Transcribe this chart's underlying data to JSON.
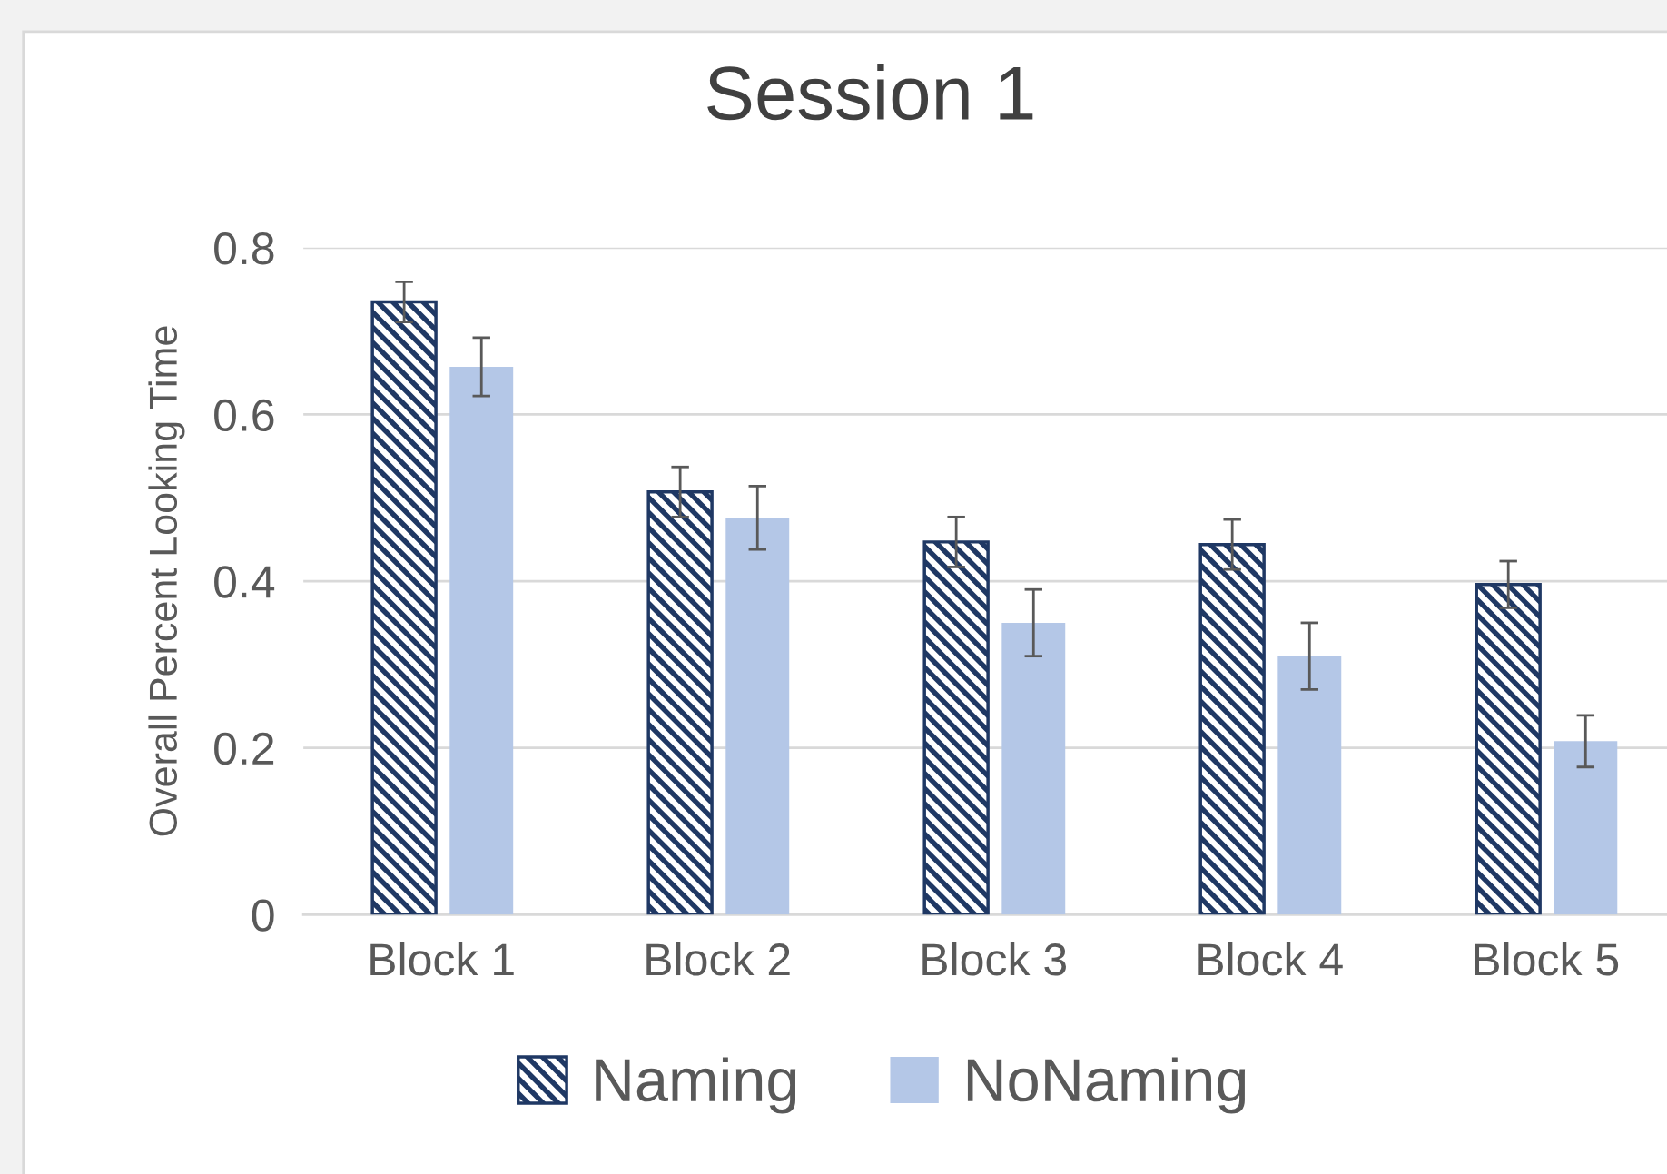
{
  "chart_data": {
    "type": "bar",
    "title": "Session 1",
    "ylabel": "Overall Percent Looking Time",
    "categories": [
      "Block 1",
      "Block 2",
      "Block 3",
      "Block 4",
      "Block 5"
    ],
    "series": [
      {
        "name": "Naming",
        "color": "#1f3864",
        "values": [
          0.735,
          0.507,
          0.447,
          0.444,
          0.396
        ],
        "errors": [
          0.024,
          0.03,
          0.03,
          0.03,
          0.028
        ]
      },
      {
        "name": "NoNaming",
        "color": "#b4c7e7",
        "values": [
          0.657,
          0.476,
          0.35,
          0.31,
          0.208
        ],
        "errors": [
          0.035,
          0.038,
          0.04,
          0.04,
          0.031
        ]
      }
    ],
    "ylim": [
      0,
      0.8
    ],
    "yticks": [
      0,
      0.2,
      0.4,
      0.6,
      0.8
    ],
    "grid": "y",
    "legend": "bottom"
  }
}
